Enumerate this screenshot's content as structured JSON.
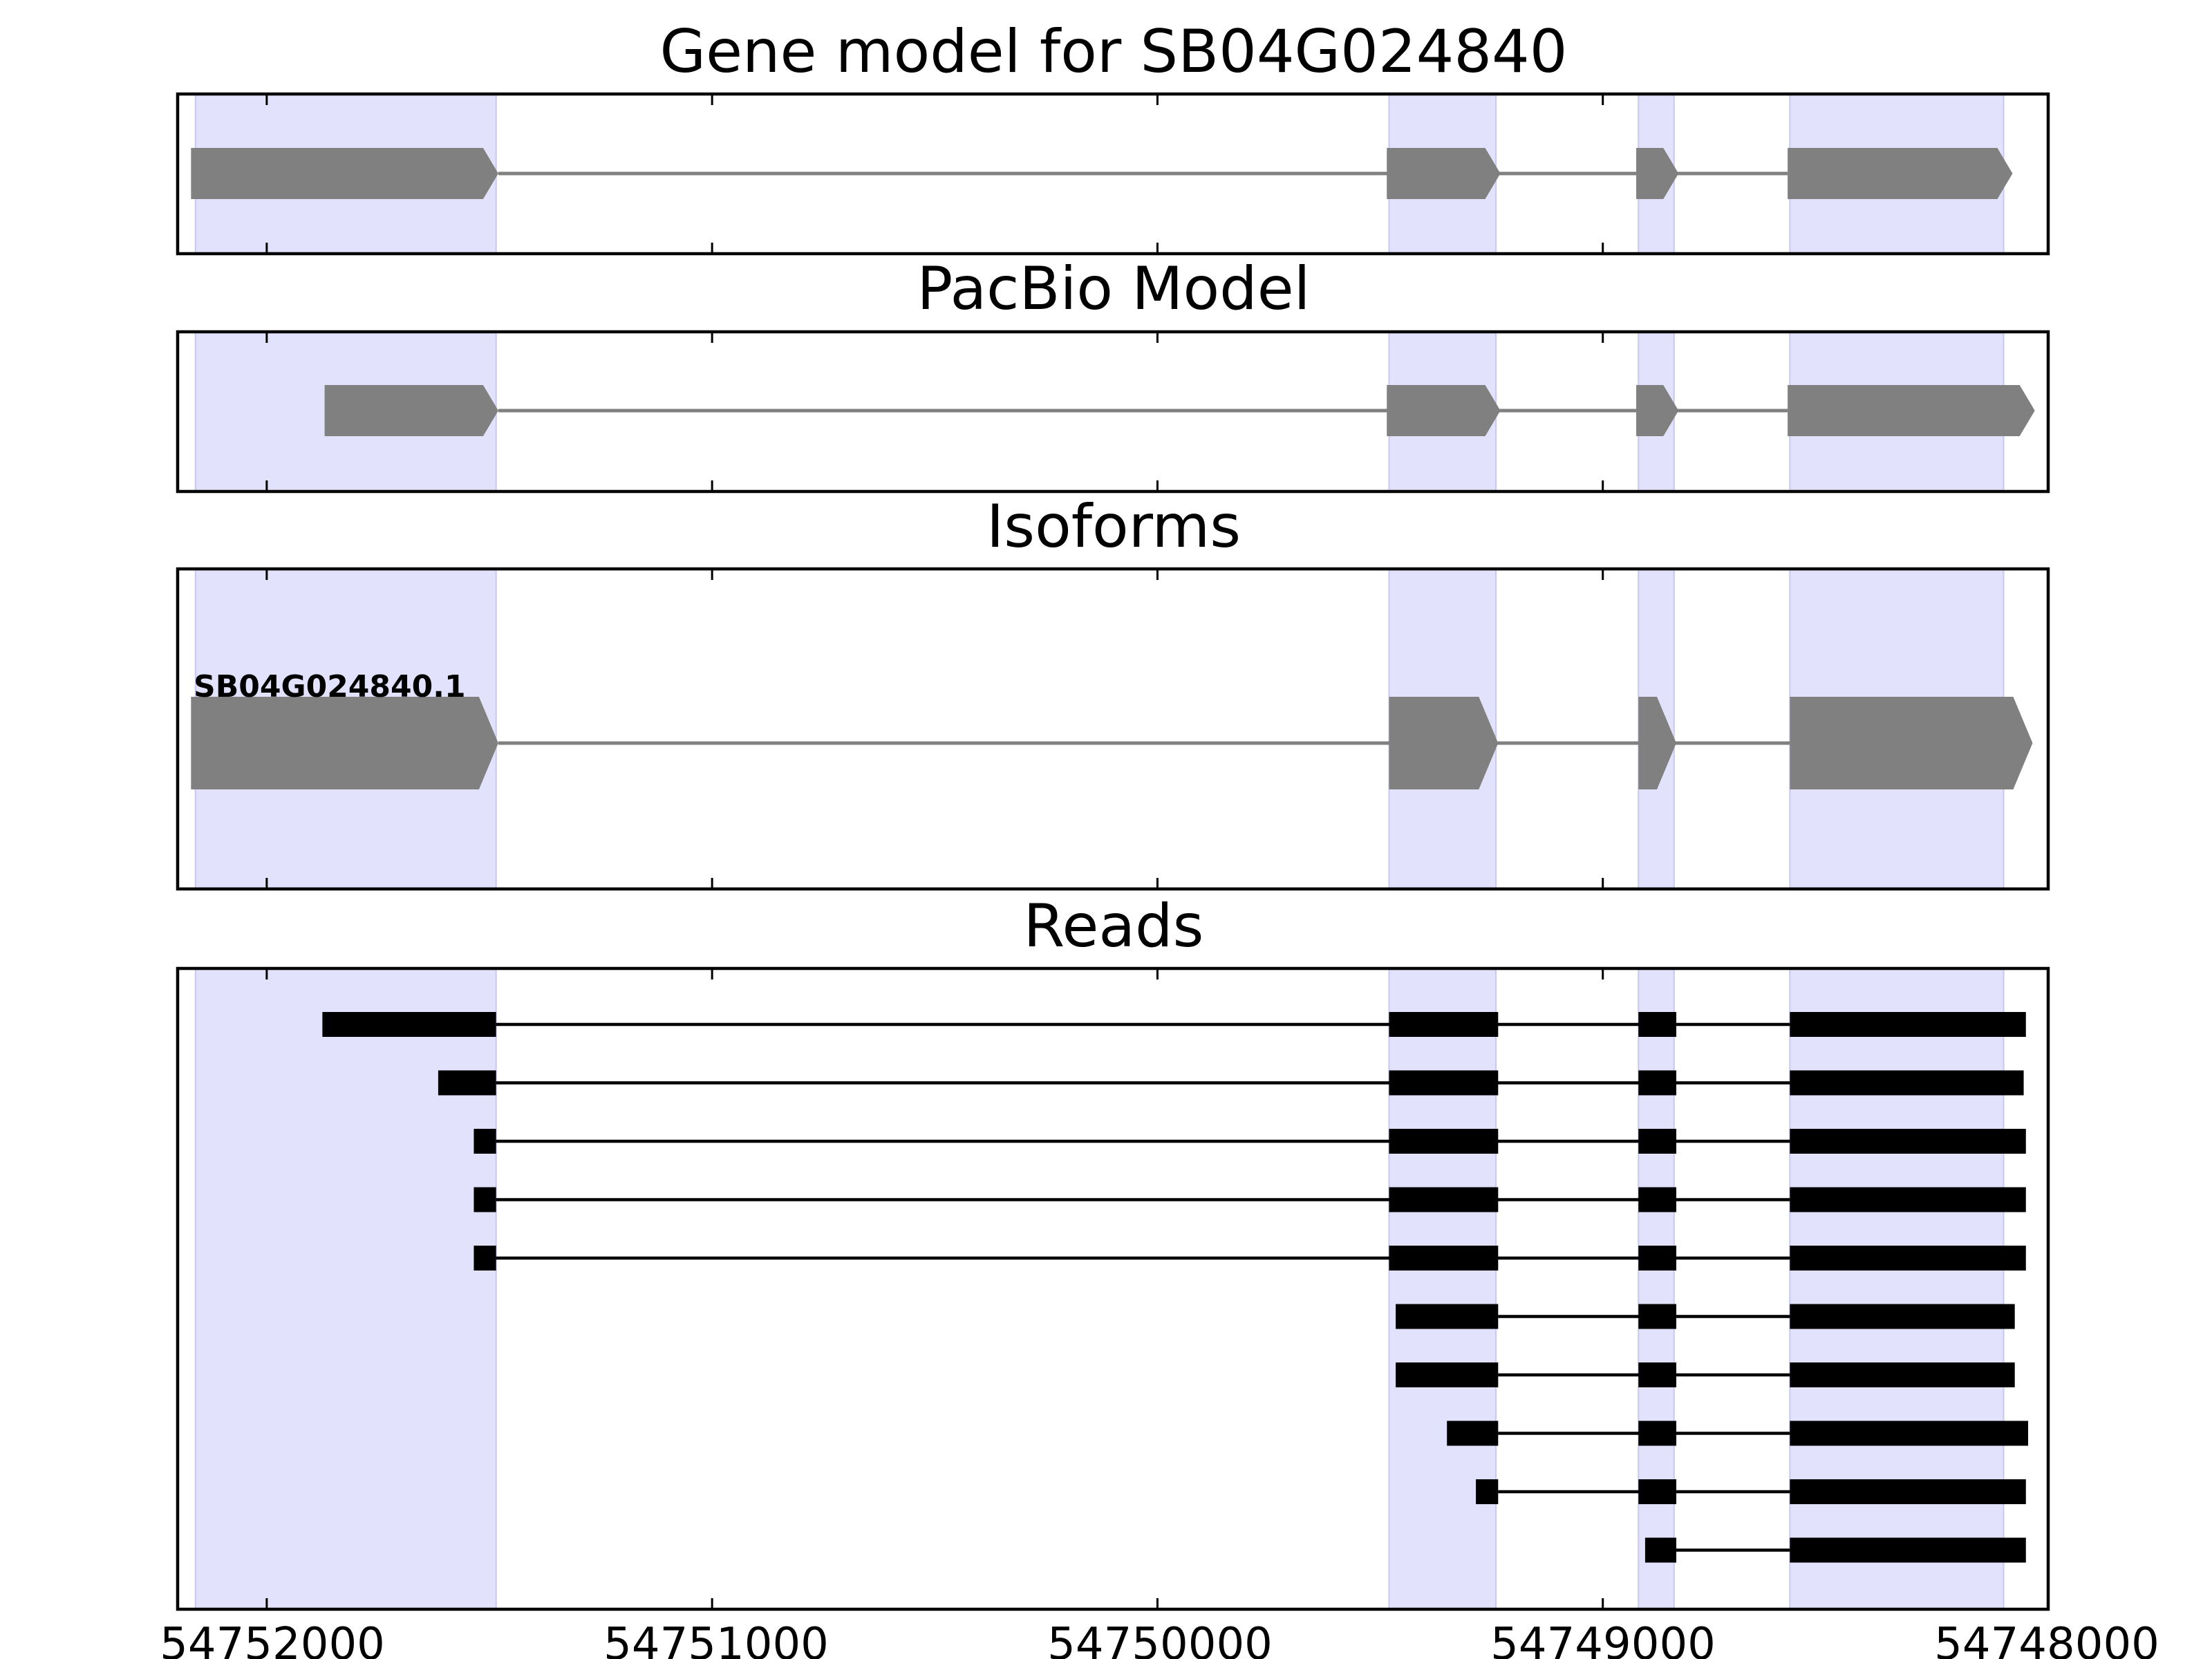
{
  "colors": {
    "exon_shade": "#e2e2fc",
    "exon_shade_edge": "#c8c8f0",
    "model_feature": "#808080",
    "read": "#000000",
    "frame": "#000000"
  },
  "chart_data": {
    "type": "gene-track",
    "strand": "-",
    "xlim": [
      54752200,
      54748000
    ],
    "xticks": [
      54752000,
      54751000,
      54750000,
      54749000,
      54748000
    ],
    "xtick_labels": [
      "54752000",
      "54751000",
      "54750000",
      "54749000",
      "54748000"
    ],
    "grid": false,
    "shaded_exons": [
      [
        54752160,
        54751485
      ],
      [
        54749480,
        54749240
      ],
      [
        54748920,
        54748840
      ],
      [
        54748580,
        54748100
      ]
    ],
    "panels": [
      {
        "id": "gene",
        "title": "Gene model for SB04G024840",
        "features": [
          {
            "start": 54752170,
            "end": 54751480,
            "kind": "exon"
          },
          {
            "start": 54749485,
            "end": 54749230,
            "kind": "exon"
          },
          {
            "start": 54748925,
            "end": 54748830,
            "kind": "exon"
          },
          {
            "start": 54748585,
            "end": 54748080,
            "kind": "exon"
          }
        ]
      },
      {
        "id": "pacbio",
        "title": "PacBio Model",
        "features": [
          {
            "start": 54751870,
            "end": 54751480,
            "kind": "exon"
          },
          {
            "start": 54749485,
            "end": 54749230,
            "kind": "exon"
          },
          {
            "start": 54748925,
            "end": 54748830,
            "kind": "exon"
          },
          {
            "start": 54748585,
            "end": 54748030,
            "kind": "exon"
          }
        ]
      },
      {
        "id": "isoforms",
        "title": "Isoforms",
        "isoform_label": "SB04G024840.1",
        "features": [
          {
            "start": 54752170,
            "end": 54751480,
            "kind": "exon"
          },
          {
            "start": 54749480,
            "end": 54749235,
            "kind": "exon"
          },
          {
            "start": 54748920,
            "end": 54748835,
            "kind": "exon"
          },
          {
            "start": 54748580,
            "end": 54748035,
            "kind": "exon"
          }
        ]
      },
      {
        "id": "reads",
        "title": "Reads",
        "reads": [
          [
            [
              54751875,
              54751485
            ],
            [
              54749480,
              54749235
            ],
            [
              54748920,
              54748835
            ],
            [
              54748580,
              54748050
            ]
          ],
          [
            [
              54751615,
              54751485
            ],
            [
              54749480,
              54749235
            ],
            [
              54748920,
              54748835
            ],
            [
              54748580,
              54748055
            ]
          ],
          [
            [
              54751535,
              54751485
            ],
            [
              54749480,
              54749235
            ],
            [
              54748920,
              54748835
            ],
            [
              54748580,
              54748050
            ]
          ],
          [
            [
              54751535,
              54751485
            ],
            [
              54749480,
              54749235
            ],
            [
              54748920,
              54748835
            ],
            [
              54748580,
              54748050
            ]
          ],
          [
            [
              54751535,
              54751485
            ],
            [
              54749480,
              54749235
            ],
            [
              54748920,
              54748835
            ],
            [
              54748580,
              54748050
            ]
          ],
          [
            [
              54749465,
              54749235
            ],
            [
              54748920,
              54748835
            ],
            [
              54748580,
              54748075
            ]
          ],
          [
            [
              54749465,
              54749235
            ],
            [
              54748920,
              54748835
            ],
            [
              54748580,
              54748075
            ]
          ],
          [
            [
              54749350,
              54749235
            ],
            [
              54748920,
              54748835
            ],
            [
              54748580,
              54748045
            ]
          ],
          [
            [
              54749285,
              54749235
            ],
            [
              54748920,
              54748835
            ],
            [
              54748580,
              54748050
            ]
          ],
          [
            [
              54748905,
              54748835
            ],
            [
              54748580,
              54748050
            ]
          ]
        ]
      }
    ]
  }
}
